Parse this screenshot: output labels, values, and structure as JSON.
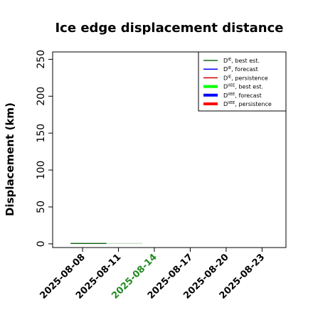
{
  "chart_data": {
    "type": "line",
    "title": "Ice edge displacement distance",
    "ylabel": "Displacement (km)",
    "xlabel": "",
    "ylim": [
      -5,
      260
    ],
    "xlim": [
      "2025-08-05T12:00",
      "2025-08-25T00:00"
    ],
    "yticks": [
      0,
      50,
      100,
      150,
      200,
      250
    ],
    "xticks": [
      "2025-08-08",
      "2025-08-11",
      "2025-08-14",
      "2025-08-17",
      "2025-08-20",
      "2025-08-23"
    ],
    "highlight_tick": "2025-08-14",
    "highlight_color": "#228b22",
    "grid": false,
    "legend_position": "top-right",
    "series": [
      {
        "name": "D^IE, best est.",
        "color": "#1a6b1a",
        "width": 1.5,
        "x": [
          "2025-08-07",
          "2025-08-10"
        ],
        "y": [
          0.5,
          0.5
        ]
      },
      {
        "name": "D^IE, forecast",
        "color": "#0000ff",
        "width": 1.5,
        "x": [],
        "y": []
      },
      {
        "name": "D^IE, persistence",
        "color": "#cc0000",
        "width": 1.5,
        "x": [],
        "y": []
      },
      {
        "name": "D^IIEE, best est.",
        "color": "#00ff00",
        "width": 3.5,
        "x": [],
        "y": []
      },
      {
        "name": "D^IIEE, forecast",
        "color": "#0000ff",
        "width": 3.5,
        "x": [],
        "y": []
      },
      {
        "name": "D^IIEE, persistence",
        "color": "#ff0000",
        "width": 3.5,
        "x": [],
        "y": []
      },
      {
        "name": "",
        "color": "#cfe3cf",
        "width": 1.5,
        "x": [
          "2025-08-10",
          "2025-08-13"
        ],
        "y": [
          0.5,
          0.5
        ]
      }
    ],
    "legend": [
      {
        "base": "D",
        "sup": "IE",
        "suffix": ", best est.",
        "color": "#1a6b1a",
        "width": 1.5
      },
      {
        "base": "D",
        "sup": "IE",
        "suffix": ", forecast",
        "color": "#0000ff",
        "width": 1.5
      },
      {
        "base": "D",
        "sup": "IE",
        "suffix": ", persistence",
        "color": "#cc0000",
        "width": 1.5
      },
      {
        "base": "D",
        "sup": "IIEE",
        "suffix": ", best est.",
        "color": "#00ff00",
        "width": 4
      },
      {
        "base": "D",
        "sup": "IIEE",
        "suffix": ", forecast",
        "color": "#0000ff",
        "width": 4
      },
      {
        "base": "D",
        "sup": "IIEE",
        "suffix": ", persistence",
        "color": "#ff0000",
        "width": 4
      }
    ]
  }
}
